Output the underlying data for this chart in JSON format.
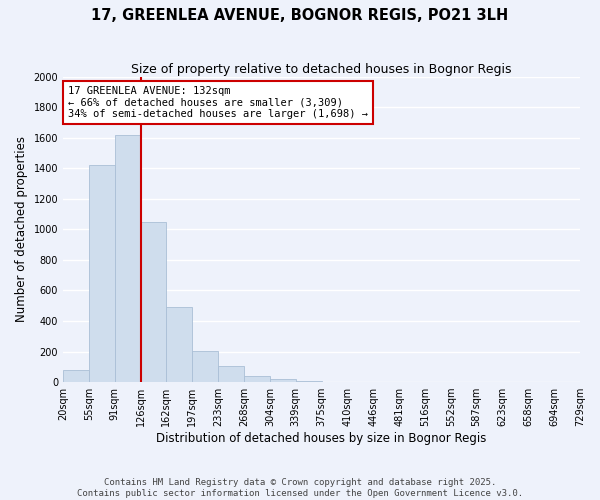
{
  "title": "17, GREENLEA AVENUE, BOGNOR REGIS, PO21 3LH",
  "subtitle": "Size of property relative to detached houses in Bognor Regis",
  "xlabel": "Distribution of detached houses by size in Bognor Regis",
  "ylabel": "Number of detached properties",
  "bar_values": [
    80,
    1420,
    1620,
    1050,
    490,
    205,
    105,
    40,
    20,
    10,
    0,
    0,
    0,
    0,
    0,
    0,
    0,
    0,
    0,
    0
  ],
  "bin_labels": [
    "20sqm",
    "55sqm",
    "91sqm",
    "126sqm",
    "162sqm",
    "197sqm",
    "233sqm",
    "268sqm",
    "304sqm",
    "339sqm",
    "375sqm",
    "410sqm",
    "446sqm",
    "481sqm",
    "516sqm",
    "552sqm",
    "587sqm",
    "623sqm",
    "658sqm",
    "694sqm",
    "729sqm"
  ],
  "bar_color": "#cfdded",
  "bar_edge_color": "#aabfd6",
  "vline_x_idx": 3,
  "vline_color": "#cc0000",
  "annotation_line1": "17 GREENLEA AVENUE: 132sqm",
  "annotation_line2": "← 66% of detached houses are smaller (3,309)",
  "annotation_line3": "34% of semi-detached houses are larger (1,698) →",
  "annotation_box_color": "#ffffff",
  "annotation_box_edge": "#cc0000",
  "ylim": [
    0,
    2000
  ],
  "yticks": [
    0,
    200,
    400,
    600,
    800,
    1000,
    1200,
    1400,
    1600,
    1800,
    2000
  ],
  "bg_color": "#eef2fb",
  "grid_color": "#ffffff",
  "footer_text": "Contains HM Land Registry data © Crown copyright and database right 2025.\nContains public sector information licensed under the Open Government Licence v3.0.",
  "title_fontsize": 10.5,
  "subtitle_fontsize": 9,
  "axis_label_fontsize": 8.5,
  "tick_fontsize": 7,
  "annotation_fontsize": 7.5,
  "footer_fontsize": 6.5
}
